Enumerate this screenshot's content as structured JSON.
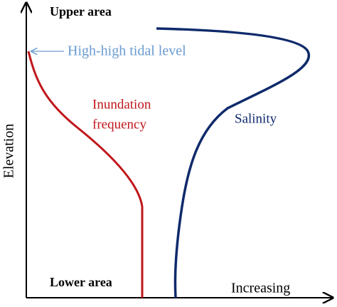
{
  "axes": {
    "y_label": "Elevation",
    "x_label": "Increasing"
  },
  "regions": {
    "upper": "Upper area",
    "lower": "Lower area"
  },
  "annotations": {
    "tidal_level": "High-high tidal level",
    "inundation_line1": "Inundation",
    "inundation_line2": "frequency",
    "salinity": "Salinity"
  }
}
